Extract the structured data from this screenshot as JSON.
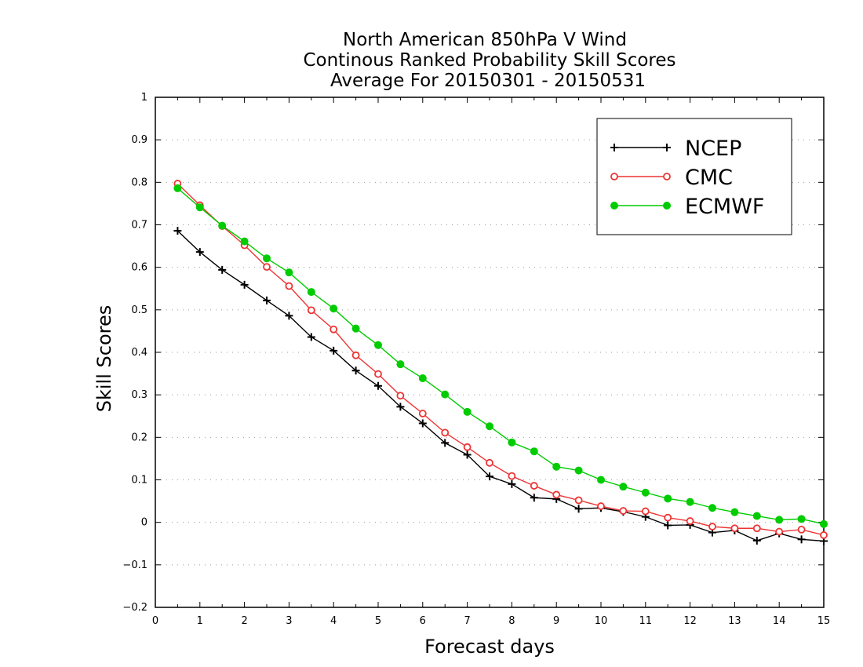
{
  "chart_data": {
    "type": "line",
    "title": [
      "North American 850hPa V Wind",
      "Continous Ranked Probability Skill Scores",
      "Average For 20150301 - 20150531"
    ],
    "xlabel": "Forecast days",
    "ylabel": "Skill Scores",
    "xlim": [
      0,
      15
    ],
    "ylim": [
      -0.2,
      1
    ],
    "xticks": [
      "0",
      "1",
      "2",
      "3",
      "4",
      "5",
      "6",
      "7",
      "8",
      "9",
      "10",
      "11",
      "12",
      "13",
      "14",
      "15"
    ],
    "yticks": [
      "−0.2",
      "−0.1",
      "0",
      "0.1",
      "0.2",
      "0.3",
      "0.4",
      "0.5",
      "0.6",
      "0.7",
      "0.8",
      "0.9",
      "1"
    ],
    "ytick_values": [
      -0.2,
      -0.1,
      0,
      0.1,
      0.2,
      0.3,
      0.4,
      0.5,
      0.6,
      0.7,
      0.8,
      0.9,
      1
    ],
    "grid": "horizontal dotted",
    "legend_position": "top-right",
    "x": [
      0.5,
      1,
      1.5,
      2,
      2.5,
      3,
      3.5,
      4,
      4.5,
      5,
      5.5,
      6,
      6.5,
      7,
      7.5,
      8,
      8.5,
      9,
      9.5,
      10,
      10.5,
      11,
      11.5,
      12,
      12.5,
      13,
      13.5,
      14,
      14.5,
      15
    ],
    "series": [
      {
        "name": "NCEP",
        "color": "#000000",
        "marker": "plus",
        "values": [
          0.686,
          0.636,
          0.594,
          0.559,
          0.522,
          0.486,
          0.436,
          0.404,
          0.357,
          0.321,
          0.272,
          0.233,
          0.187,
          0.159,
          0.108,
          0.09,
          0.058,
          0.055,
          0.032,
          0.034,
          0.025,
          0.013,
          -0.007,
          -0.006,
          -0.024,
          -0.019,
          -0.043,
          -0.026,
          -0.04,
          -0.044
        ]
      },
      {
        "name": "CMC",
        "color": "#ee3333",
        "marker": "open-circle",
        "values": [
          0.797,
          0.746,
          0.697,
          0.652,
          0.601,
          0.556,
          0.499,
          0.454,
          0.393,
          0.349,
          0.298,
          0.256,
          0.211,
          0.177,
          0.14,
          0.109,
          0.086,
          0.065,
          0.052,
          0.038,
          0.027,
          0.026,
          0.011,
          0.003,
          -0.01,
          -0.014,
          -0.014,
          -0.022,
          -0.017,
          -0.03
        ]
      },
      {
        "name": "ECMWF",
        "color": "#00cc00",
        "marker": "filled-circle",
        "values": [
          0.786,
          0.741,
          0.698,
          0.661,
          0.621,
          0.588,
          0.542,
          0.503,
          0.456,
          0.417,
          0.372,
          0.339,
          0.301,
          0.26,
          0.226,
          0.188,
          0.167,
          0.131,
          0.122,
          0.1,
          0.084,
          0.07,
          0.056,
          0.048,
          0.034,
          0.024,
          0.015,
          0.006,
          0.008,
          -0.004
        ]
      }
    ]
  }
}
